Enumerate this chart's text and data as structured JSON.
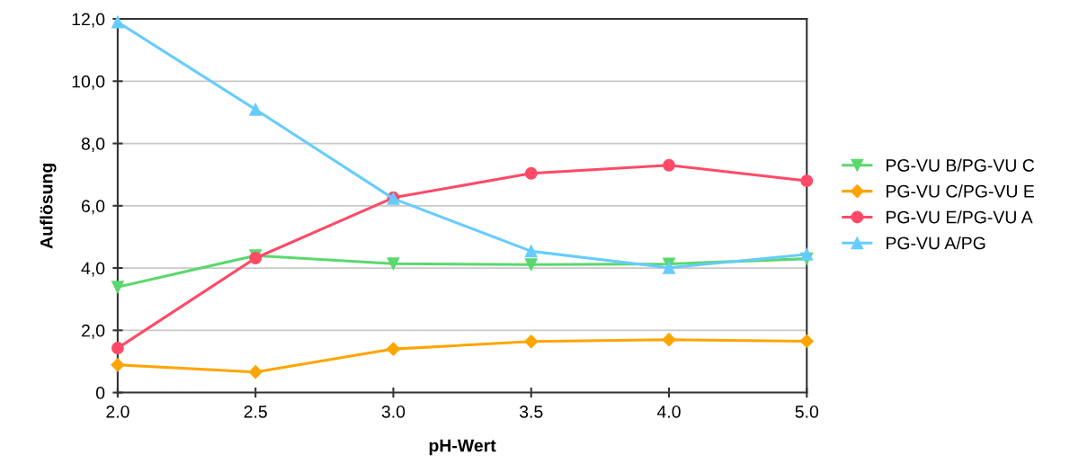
{
  "chart_data": {
    "type": "line",
    "xlabel": "pH-Wert",
    "ylabel": "Auflösung",
    "categories": [
      "2.0",
      "2.5",
      "3.0",
      "3.5",
      "4.0",
      "5.0"
    ],
    "series": [
      {
        "name": "PG-VU B/PG-VU C",
        "color": "#5ad86e",
        "marker": "triangle-down",
        "values": [
          3.39,
          4.4,
          4.14,
          4.11,
          4.13,
          4.3
        ]
      },
      {
        "name": "PG-VU C/PG-VU E",
        "color": "#ffa500",
        "marker": "diamond",
        "values": [
          0.89,
          0.66,
          1.4,
          1.64,
          1.7,
          1.65
        ]
      },
      {
        "name": "PG-VU E/PG-VU A",
        "color": "#ff4a67",
        "marker": "circle",
        "values": [
          1.43,
          4.32,
          6.26,
          7.04,
          7.3,
          6.8
        ]
      },
      {
        "name": "PG-VU A/PG",
        "color": "#66ccff",
        "marker": "triangle",
        "values": [
          11.9,
          9.09,
          6.23,
          4.54,
          4.01,
          4.44
        ]
      }
    ],
    "ylim": [
      0,
      12
    ],
    "yticks": [
      0,
      {
        "value": 2,
        "label": "2,0"
      },
      {
        "value": 4,
        "label": "4,0"
      },
      {
        "value": 6,
        "label": "6,0"
      },
      {
        "value": 8,
        "label": "8,0"
      },
      {
        "value": 10,
        "label": "10,0"
      },
      {
        "value": 12,
        "label": "12,0"
      }
    ],
    "grid": "y",
    "legend": "right",
    "line_style": "solid"
  }
}
